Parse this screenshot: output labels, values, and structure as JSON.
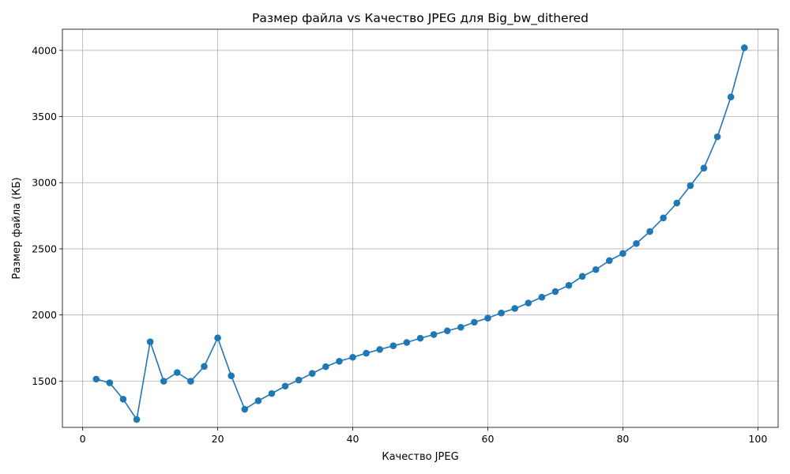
{
  "chart_data": {
    "type": "line",
    "title": "Размер файла vs Качество JPEG для Big_bw_dithered",
    "xlabel": "Качество JPEG",
    "ylabel": "Размер файла (КБ)",
    "xlim": [
      -3,
      103
    ],
    "ylim": [
      1150,
      4160
    ],
    "xticks": [
      0,
      20,
      40,
      60,
      80,
      100
    ],
    "yticks": [
      1500,
      2000,
      2500,
      3000,
      3500,
      4000
    ],
    "grid": true,
    "line_color": "#1f77b4",
    "marker": "circle",
    "series": [
      {
        "x": [
          2,
          4,
          6,
          8,
          10,
          12,
          14,
          16,
          18,
          20,
          22,
          24,
          26,
          28,
          30,
          32,
          34,
          36,
          38,
          40,
          42,
          44,
          46,
          48,
          50,
          52,
          54,
          56,
          58,
          60,
          62,
          64,
          66,
          68,
          70,
          72,
          74,
          76,
          78,
          80,
          82,
          84,
          86,
          88,
          90,
          92,
          94,
          96,
          98
        ],
        "y": [
          1515,
          1487,
          1363,
          1210,
          1797,
          1499,
          1565,
          1499,
          1611,
          1827,
          1540,
          1287,
          1351,
          1406,
          1462,
          1508,
          1558,
          1609,
          1650,
          1680,
          1711,
          1739,
          1767,
          1792,
          1824,
          1852,
          1880,
          1907,
          1945,
          1976,
          2015,
          2049,
          2090,
          2134,
          2177,
          2224,
          2292,
          2343,
          2411,
          2465,
          2540,
          2631,
          2734,
          2846,
          2978,
          3110,
          3347,
          3648,
          4020
        ]
      }
    ]
  }
}
